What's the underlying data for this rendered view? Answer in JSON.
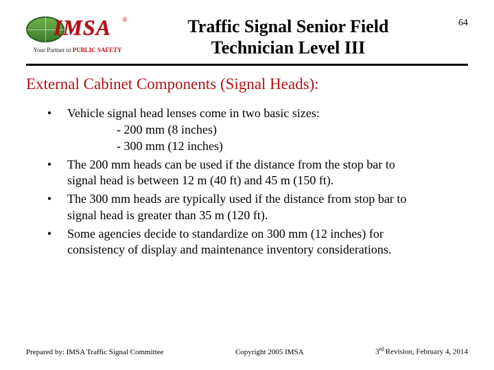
{
  "header": {
    "logo_text": "IMSA",
    "logo_registered": "®",
    "tagline_prefix": "Your Partner in ",
    "tagline_highlight": "PUBLIC SAFETY",
    "title_line1": "Traffic Signal Senior Field",
    "title_line2": "Technician Level III",
    "page_number": "64"
  },
  "section_heading": "External Cabinet Components (Signal Heads):",
  "bullets": [
    {
      "text": "Vehicle signal head lenses come in two basic sizes:",
      "sub": [
        "- 200 mm (8 inches)",
        "- 300 mm (12 inches)"
      ]
    },
    {
      "text": "The 200 mm heads can be used if the distance from the stop bar to signal head is between 12 m (40 ft) and 45 m (150 ft)."
    },
    {
      "text": "The 300 mm heads are typically used if the distance from stop bar to signal head is greater than 35 m (120 ft)."
    },
    {
      "text": "Some agencies decide to standardize on 300 mm (12 inches) for consistency of display and maintenance inventory considerations."
    }
  ],
  "footer": {
    "prepared_by": "Prepared by: IMSA Traffic Signal Committee",
    "copyright": "Copyright 2005 IMSA",
    "revision_prefix": "3",
    "revision_ordinal": "rd",
    "revision_rest": " Revision, February 4, 2014"
  },
  "colors": {
    "accent_red": "#b11116",
    "text": "#000000",
    "background": "#ffffff"
  }
}
